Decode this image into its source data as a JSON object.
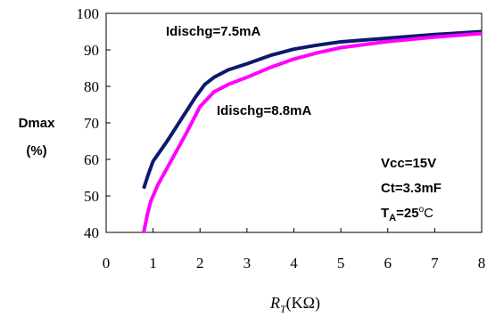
{
  "chart_data": {
    "type": "line",
    "xlabel": "R",
    "xlabel_sub": "T",
    "xlabel_unit": "(KΩ)",
    "ylabel_line1": "Dmax",
    "ylabel_line2": "(%)",
    "xlim": [
      0,
      8
    ],
    "ylim": [
      40,
      100
    ],
    "x_ticks": [
      0,
      1,
      2,
      3,
      4,
      5,
      6,
      7,
      8
    ],
    "y_ticks": [
      40,
      50,
      60,
      70,
      80,
      90,
      100
    ],
    "grid": false,
    "series": [
      {
        "name": "Idischg=7.5mA",
        "color": "#0b1a6e",
        "x": [
          0.8,
          0.9,
          1.0,
          1.3,
          1.6,
          1.9,
          2.1,
          2.3,
          2.6,
          3.0,
          3.5,
          4.0,
          4.5,
          5.0,
          6.0,
          7.0,
          8.0
        ],
        "y": [
          52,
          56,
          59.5,
          65,
          71,
          77,
          80.5,
          82.5,
          84.5,
          86.2,
          88.5,
          90.2,
          91.3,
          92.2,
          93.2,
          94.2,
          95.0
        ]
      },
      {
        "name": "Idischg=8.8mA",
        "color": "#ff00ff",
        "x": [
          0.8,
          0.88,
          0.95,
          1.1,
          1.4,
          1.7,
          2.0,
          2.3,
          2.6,
          3.0,
          3.5,
          4.0,
          4.5,
          5.0,
          6.0,
          7.0,
          8.0
        ],
        "y": [
          40,
          45,
          48.5,
          53,
          60,
          67,
          74.5,
          78.5,
          80.5,
          82.5,
          85.2,
          87.5,
          89.2,
          90.6,
          92.3,
          93.5,
          94.5
        ]
      }
    ],
    "annotations": {
      "label_7_5": "Idischg=7.5mA",
      "label_8_8": "Idischg=8.8mA",
      "vcc": "Vcc=15V",
      "ct": "Ct=3.3mF",
      "ta_prefix": "T",
      "ta_sub": "A",
      "ta_value": "=25",
      "ta_deg": "o",
      "ta_unit": "C"
    }
  }
}
